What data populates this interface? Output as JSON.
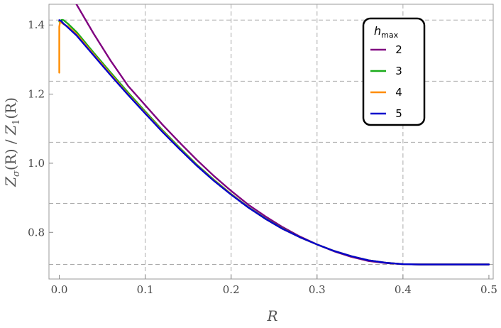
{
  "chart_data": {
    "type": "line",
    "xlabel": "R",
    "ylabel_parts": {
      "z1": "Z",
      "sigma": "σ",
      "arg1": "(R) / ",
      "z2": "Z",
      "one": "1",
      "arg2": "(R)"
    },
    "xlim": [
      -0.012,
      0.505
    ],
    "ylim": [
      0.665,
      1.46
    ],
    "x_ticks": [
      0.0,
      0.1,
      0.2,
      0.3,
      0.4,
      0.5
    ],
    "x_tick_labels": [
      "0.0",
      "0.1",
      "0.2",
      "0.3",
      "0.4",
      "0.5"
    ],
    "y_ticks": [
      0.8,
      1.0,
      1.2,
      1.4
    ],
    "y_tick_labels": [
      "0.8",
      "1.0",
      "1.2",
      "1.4"
    ],
    "grid": true,
    "grid_x": [
      0.1,
      0.2,
      0.3,
      0.4
    ],
    "grid_y": [
      0.7071,
      0.8839,
      1.0607,
      1.2374,
      1.4142
    ],
    "legend": {
      "title_main": "h",
      "title_sub": "max",
      "placement": "top-right",
      "entries": [
        "2",
        "3",
        "4",
        "5"
      ]
    },
    "series": [
      {
        "name": "2",
        "color": "#800080",
        "x": [
          0.02,
          0.04,
          0.06,
          0.08,
          0.1,
          0.12,
          0.14,
          0.16,
          0.18,
          0.2,
          0.22,
          0.24,
          0.26,
          0.28,
          0.3,
          0.32,
          0.34,
          0.36,
          0.38,
          0.4,
          0.42,
          0.44,
          0.46,
          0.48,
          0.5
        ],
        "y": [
          1.46,
          1.375,
          1.296,
          1.224,
          1.168,
          1.112,
          1.06,
          1.01,
          0.963,
          0.92,
          0.88,
          0.846,
          0.815,
          0.788,
          0.765,
          0.745,
          0.729,
          0.717,
          0.711,
          0.708,
          0.7071,
          0.7071,
          0.7071,
          0.7071,
          0.7071
        ]
      },
      {
        "name": "3",
        "color": "#1aab1a",
        "x": [
          0.0,
          0.003,
          0.005,
          0.01,
          0.02,
          0.04,
          0.06,
          0.08,
          0.1,
          0.12,
          0.14,
          0.16,
          0.18,
          0.2,
          0.22,
          0.24,
          0.26,
          0.28,
          0.3,
          0.32,
          0.34,
          0.36,
          0.38,
          0.4,
          0.42,
          0.44,
          0.46,
          0.48,
          0.5
        ],
        "y": [
          1.41,
          1.415,
          1.414,
          1.404,
          1.38,
          1.32,
          1.262,
          1.205,
          1.15,
          1.096,
          1.045,
          0.996,
          0.952,
          0.911,
          0.873,
          0.84,
          0.811,
          0.786,
          0.765,
          0.746,
          0.731,
          0.719,
          0.712,
          0.708,
          0.7071,
          0.7071,
          0.7071,
          0.7071,
          0.7071
        ]
      },
      {
        "name": "4",
        "color": "#ff8c00",
        "x": [
          0.0,
          0.0,
          0.001,
          0.003,
          0.006,
          0.01,
          0.02,
          0.04,
          0.06,
          0.08,
          0.1,
          0.12,
          0.14,
          0.16,
          0.18,
          0.2,
          0.22,
          0.24,
          0.26,
          0.28,
          0.3,
          0.32,
          0.34,
          0.36,
          0.38,
          0.4,
          0.42,
          0.44,
          0.46,
          0.48,
          0.5
        ],
        "y": [
          1.262,
          1.395,
          1.41,
          1.406,
          1.401,
          1.396,
          1.374,
          1.315,
          1.257,
          1.2,
          1.146,
          1.093,
          1.042,
          0.994,
          0.95,
          0.91,
          0.872,
          0.839,
          0.81,
          0.786,
          0.765,
          0.746,
          0.731,
          0.719,
          0.712,
          0.708,
          0.7071,
          0.7071,
          0.7071,
          0.7071,
          0.7071
        ]
      },
      {
        "name": "5",
        "color": "#0000cc",
        "x": [
          0.0,
          0.002,
          0.005,
          0.01,
          0.02,
          0.04,
          0.06,
          0.08,
          0.1,
          0.12,
          0.14,
          0.16,
          0.18,
          0.2,
          0.22,
          0.24,
          0.26,
          0.28,
          0.3,
          0.32,
          0.34,
          0.36,
          0.38,
          0.4,
          0.42,
          0.44,
          0.46,
          0.48,
          0.5
        ],
        "y": [
          1.414,
          1.412,
          1.404,
          1.393,
          1.37,
          1.312,
          1.254,
          1.198,
          1.144,
          1.091,
          1.041,
          0.993,
          0.949,
          0.909,
          0.872,
          0.839,
          0.81,
          0.786,
          0.765,
          0.746,
          0.731,
          0.719,
          0.712,
          0.708,
          0.7071,
          0.7071,
          0.7071,
          0.7071,
          0.7071
        ]
      }
    ]
  }
}
